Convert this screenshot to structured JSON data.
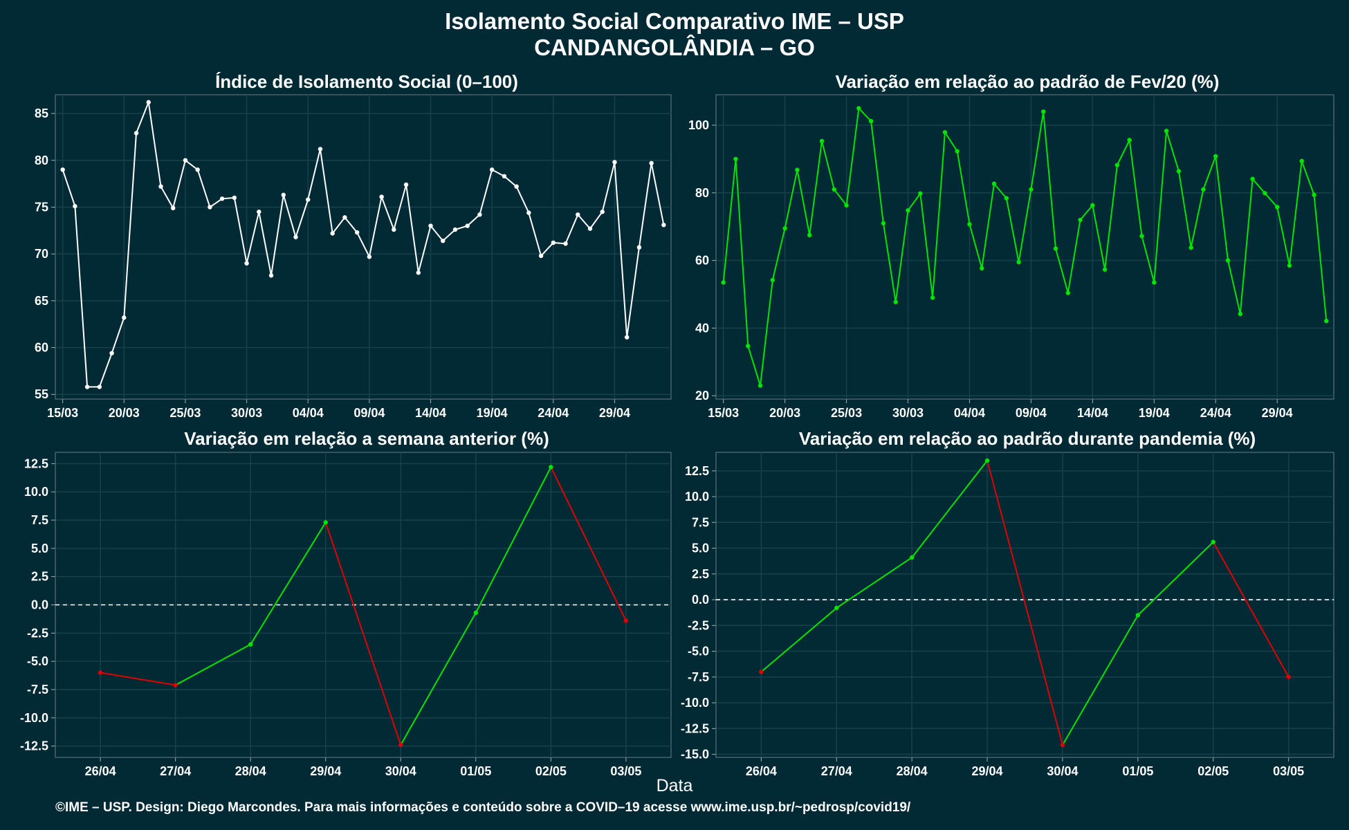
{
  "title_line1": "Isolamento Social Comparativo IME – USP",
  "title_line2": "CANDANGOLÂNDIA – GO",
  "xaxis_label": "Data",
  "footer": "©IME – USP. Design: Diego Marcondes. Para mais informações e conteúdo sobre a COVID–19 acesse www.ime.usp.br/~pedrosp/covid19/",
  "colors": {
    "background": "#022a35",
    "white_series": "#ffffff",
    "green_series": "#00e400",
    "up": "#00e400",
    "down": "#e00000",
    "zero_line": "#ffffff"
  },
  "chart_data": [
    {
      "type": "line",
      "title": "Índice de Isolamento Social (0–100)",
      "color": "#ffffff",
      "ylim": [
        54.5,
        87
      ],
      "yticks": [
        55,
        60,
        65,
        70,
        75,
        80,
        85
      ],
      "xtick_labels": [
        "15/03",
        "20/03",
        "25/03",
        "30/03",
        "04/04",
        "09/04",
        "14/04",
        "19/04",
        "24/04",
        "29/04"
      ],
      "xtick_step": 5,
      "values": [
        79.0,
        75.1,
        55.8,
        55.8,
        59.4,
        63.2,
        82.9,
        86.2,
        77.2,
        74.9,
        80.0,
        79.0,
        75.0,
        75.9,
        76.0,
        69.0,
        74.5,
        67.7,
        76.3,
        71.8,
        75.8,
        81.2,
        72.2,
        73.9,
        72.3,
        69.7,
        76.1,
        72.6,
        77.4,
        68.0,
        73.0,
        71.4,
        72.6,
        73.0,
        74.2,
        79.0,
        78.3,
        77.2,
        74.4,
        69.8,
        71.2,
        71.1,
        74.2,
        72.7,
        74.5,
        79.8,
        61.1,
        70.7,
        79.7,
        73.1
      ],
      "grid": true
    },
    {
      "type": "line",
      "title": "Variação em relação ao padrão de Fev/20 (%)",
      "color": "#00e400",
      "ylim": [
        19,
        109
      ],
      "yticks": [
        20,
        40,
        60,
        80,
        100
      ],
      "xtick_labels": [
        "15/03",
        "20/03",
        "25/03",
        "30/03",
        "04/04",
        "09/04",
        "14/04",
        "19/04",
        "24/04",
        "29/04"
      ],
      "xtick_step": 5,
      "values": [
        53.5,
        90.0,
        34.7,
        23.0,
        54.2,
        69.5,
        86.8,
        67.5,
        95.3,
        81.0,
        76.3,
        105.0,
        101.2,
        71.0,
        47.7,
        74.8,
        79.8,
        49.0,
        97.9,
        92.3,
        70.7,
        57.7,
        82.7,
        78.4,
        59.5,
        81.0,
        104.0,
        63.5,
        50.4,
        72.0,
        76.3,
        57.3,
        88.2,
        95.6,
        67.2,
        53.5,
        98.3,
        86.4,
        63.8,
        81.0,
        90.8,
        60.0,
        44.2,
        84.1,
        79.9,
        75.8,
        58.5,
        89.4,
        79.4,
        42.1
      ],
      "grid": true
    },
    {
      "type": "line",
      "title": "Variação em relação a semana anterior (%)",
      "color_up": "#00e400",
      "color_down": "#e00000",
      "ylim": [
        -13.5,
        13.5
      ],
      "yticks": [
        -12.5,
        -10.0,
        -7.5,
        -5.0,
        -2.5,
        0.0,
        2.5,
        5.0,
        7.5,
        10.0,
        12.5
      ],
      "categories": [
        "26/04",
        "27/04",
        "28/04",
        "29/04",
        "30/04",
        "01/05",
        "02/05",
        "03/05"
      ],
      "values": [
        -6.0,
        -7.1,
        -3.5,
        7.3,
        -12.4,
        -0.7,
        12.2,
        -1.4
      ],
      "zero_line": true,
      "grid": true
    },
    {
      "type": "line",
      "title": "Variação em relação ao padrão durante pandemia (%)",
      "color_up": "#00e400",
      "color_down": "#e00000",
      "ylim": [
        -15.3,
        14.3
      ],
      "yticks": [
        -15.0,
        -12.5,
        -10.0,
        -7.5,
        -5.0,
        -2.5,
        0.0,
        2.5,
        5.0,
        7.5,
        10.0,
        12.5
      ],
      "categories": [
        "26/04",
        "27/04",
        "28/04",
        "29/04",
        "30/04",
        "01/05",
        "02/05",
        "03/05"
      ],
      "values": [
        -7.0,
        -0.8,
        4.1,
        13.5,
        -14.1,
        -1.5,
        5.6,
        -7.5
      ],
      "zero_line": true,
      "grid": true
    }
  ]
}
